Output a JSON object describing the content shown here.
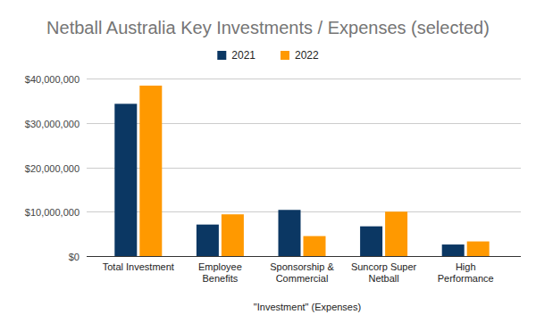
{
  "chart_data": {
    "type": "bar",
    "title": "Netball Australia Key Investments / Expenses (selected)",
    "xlabel": "\"Investment\" (Expenses)",
    "categories": [
      "Total Investment",
      "Employee Benefits",
      "Sponsorship & Commercial",
      "Suncorp Super Netball",
      "High Performance"
    ],
    "series": [
      {
        "name": "2021",
        "color": "#0b3763",
        "values": [
          34300000,
          7100000,
          10400000,
          6700000,
          2600000
        ]
      },
      {
        "name": "2022",
        "color": "#ff9900",
        "values": [
          38400000,
          9400000,
          4500000,
          10000000,
          3300000
        ]
      }
    ],
    "ylim": [
      0,
      40000000
    ],
    "yticks": [
      {
        "value": 0,
        "label": "$0"
      },
      {
        "value": 10000000,
        "label": "$10,000,000"
      },
      {
        "value": 20000000,
        "label": "$20,000,000"
      },
      {
        "value": 30000000,
        "label": "$30,000,000"
      },
      {
        "value": 40000000,
        "label": "$40,000,000"
      }
    ],
    "grid": true,
    "legend": "top"
  }
}
